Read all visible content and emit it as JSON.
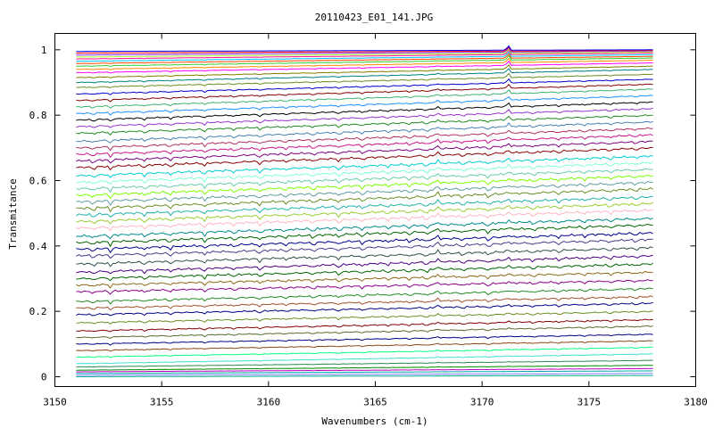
{
  "chart_data": {
    "type": "line",
    "title": "20110423_E01_141.JPG",
    "xlabel": "Wavenumbers (cm-1)",
    "ylabel": "Transmitance",
    "xlim": [
      3150,
      3180
    ],
    "ylim": [
      -0.03,
      1.05
    ],
    "x_range": [
      3151,
      3178
    ],
    "grid": false,
    "legend": "none",
    "xticks": [
      3150,
      3155,
      3160,
      3165,
      3170,
      3175,
      3180
    ],
    "yticks": [
      0,
      0.2,
      0.4,
      0.6,
      0.8,
      1
    ],
    "ytick_labels": [
      "0",
      "0.2",
      "0.4",
      "0.6",
      "0.8",
      "1"
    ],
    "series_count": 59,
    "series": [
      {
        "start": 0.0,
        "end": 0.004,
        "color": "#00aa88"
      },
      {
        "start": 0.005,
        "end": 0.01,
        "color": "#7f7fff"
      },
      {
        "start": 0.01,
        "end": 0.018,
        "color": "#00aaaa"
      },
      {
        "start": 0.015,
        "end": 0.025,
        "color": "#bf00bf"
      },
      {
        "start": 0.02,
        "end": 0.035,
        "color": "#008b00"
      },
      {
        "start": 0.03,
        "end": 0.05,
        "color": "#2e8b57"
      },
      {
        "start": 0.04,
        "end": 0.07,
        "color": "#40e0d0"
      },
      {
        "start": 0.06,
        "end": 0.09,
        "color": "#00ff7f"
      },
      {
        "start": 0.08,
        "end": 0.11,
        "color": "#8b4513"
      },
      {
        "start": 0.1,
        "end": 0.13,
        "color": "#000080"
      },
      {
        "start": 0.12,
        "end": 0.155,
        "color": "#556b2f"
      },
      {
        "start": 0.14,
        "end": 0.175,
        "color": "#800000"
      },
      {
        "start": 0.165,
        "end": 0.2,
        "color": "#6b8e23"
      },
      {
        "start": 0.19,
        "end": 0.225,
        "color": "#000080"
      },
      {
        "start": 0.21,
        "end": 0.245,
        "color": "#a0522d"
      },
      {
        "start": 0.23,
        "end": 0.27,
        "color": "#228b22"
      },
      {
        "start": 0.26,
        "end": 0.295,
        "color": "#8b008b"
      },
      {
        "start": 0.28,
        "end": 0.32,
        "color": "#8b6914"
      },
      {
        "start": 0.3,
        "end": 0.345,
        "color": "#006400"
      },
      {
        "start": 0.32,
        "end": 0.37,
        "color": "#4b0082"
      },
      {
        "start": 0.345,
        "end": 0.395,
        "color": "#2f4f4f"
      },
      {
        "start": 0.37,
        "end": 0.42,
        "color": "#483d8b"
      },
      {
        "start": 0.39,
        "end": 0.44,
        "color": "#00008b"
      },
      {
        "start": 0.41,
        "end": 0.465,
        "color": "#006400"
      },
      {
        "start": 0.43,
        "end": 0.485,
        "color": "#008b8b"
      },
      {
        "start": 0.455,
        "end": 0.51,
        "color": "#ffb6c1"
      },
      {
        "start": 0.475,
        "end": 0.53,
        "color": "#9acd32"
      },
      {
        "start": 0.495,
        "end": 0.55,
        "color": "#20b2aa"
      },
      {
        "start": 0.515,
        "end": 0.575,
        "color": "#6b8e23"
      },
      {
        "start": 0.535,
        "end": 0.595,
        "color": "#5f9ea0"
      },
      {
        "start": 0.555,
        "end": 0.615,
        "color": "#7cfc00"
      },
      {
        "start": 0.575,
        "end": 0.635,
        "color": "#66cdaa"
      },
      {
        "start": 0.595,
        "end": 0.655,
        "color": "#7fffd4"
      },
      {
        "start": 0.615,
        "end": 0.675,
        "color": "#00ced1"
      },
      {
        "start": 0.64,
        "end": 0.7,
        "color": "#8b0000"
      },
      {
        "start": 0.66,
        "end": 0.72,
        "color": "#800080"
      },
      {
        "start": 0.68,
        "end": 0.74,
        "color": "#c71585"
      },
      {
        "start": 0.7,
        "end": 0.76,
        "color": "#b03060"
      },
      {
        "start": 0.72,
        "end": 0.78,
        "color": "#4682b4"
      },
      {
        "start": 0.745,
        "end": 0.8,
        "color": "#228b22"
      },
      {
        "start": 0.765,
        "end": 0.82,
        "color": "#9932cc"
      },
      {
        "start": 0.785,
        "end": 0.84,
        "color": "#000000"
      },
      {
        "start": 0.805,
        "end": 0.86,
        "color": "#1e90ff"
      },
      {
        "start": 0.825,
        "end": 0.88,
        "color": "#3cb371"
      },
      {
        "start": 0.845,
        "end": 0.895,
        "color": "#800000"
      },
      {
        "start": 0.865,
        "end": 0.91,
        "color": "#0000cd"
      },
      {
        "start": 0.885,
        "end": 0.925,
        "color": "#6b8e23"
      },
      {
        "start": 0.9,
        "end": 0.94,
        "color": "#008080"
      },
      {
        "start": 0.915,
        "end": 0.95,
        "color": "#808000"
      },
      {
        "start": 0.93,
        "end": 0.96,
        "color": "#ff00ff"
      },
      {
        "start": 0.94,
        "end": 0.968,
        "color": "#ff8c00"
      },
      {
        "start": 0.95,
        "end": 0.975,
        "color": "#32cd32"
      },
      {
        "start": 0.958,
        "end": 0.98,
        "color": "#ff4500"
      },
      {
        "start": 0.965,
        "end": 0.985,
        "color": "#00bfff"
      },
      {
        "start": 0.972,
        "end": 0.99,
        "color": "#ff1493"
      },
      {
        "start": 0.978,
        "end": 0.993,
        "color": "#adff2f"
      },
      {
        "start": 0.984,
        "end": 0.996,
        "color": "#8a2be2"
      },
      {
        "start": 0.99,
        "end": 0.998,
        "color": "#ff0000"
      },
      {
        "start": 0.995,
        "end": 1.0,
        "color": "#0000ff"
      }
    ]
  }
}
